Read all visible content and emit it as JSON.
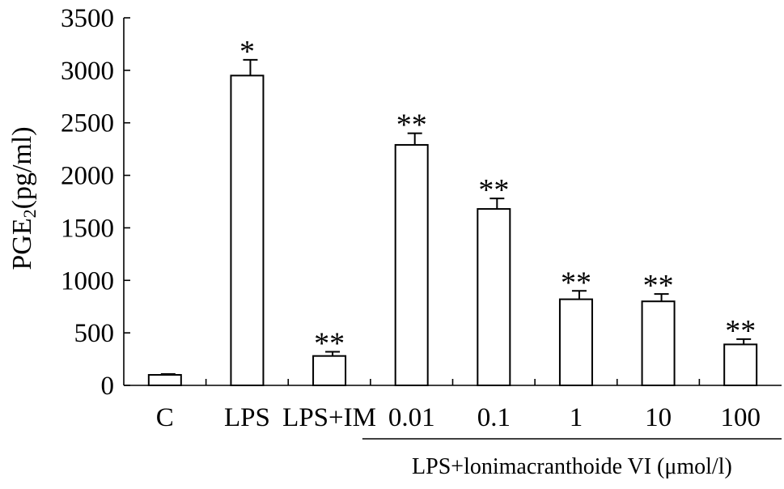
{
  "chart_data": {
    "type": "bar",
    "title": "",
    "ylabel": "PGE",
    "ylabel_subscript": "2",
    "ylabel_unit": "(pg/ml)",
    "xlabel": "",
    "ylim": [
      0,
      3500
    ],
    "yticks": [
      0,
      500,
      1000,
      1500,
      2000,
      2500,
      3000,
      3500
    ],
    "categories": [
      "C",
      "LPS",
      "LPS+IM",
      "0.01",
      "0.1",
      "1",
      "10",
      "100"
    ],
    "values": [
      100,
      2950,
      280,
      2290,
      1680,
      820,
      800,
      390
    ],
    "errors": [
      8,
      150,
      40,
      110,
      100,
      80,
      70,
      50
    ],
    "significance": [
      "",
      "*",
      "**",
      "**",
      "**",
      "**",
      "**",
      "**"
    ],
    "group_label": "LPS+lonimacranthoide VI (μmol/l)",
    "group_span": [
      "0.01",
      "100"
    ],
    "grid": false,
    "legend": "none",
    "bar_fill": "#ffffff",
    "bar_stroke": "#000000"
  }
}
